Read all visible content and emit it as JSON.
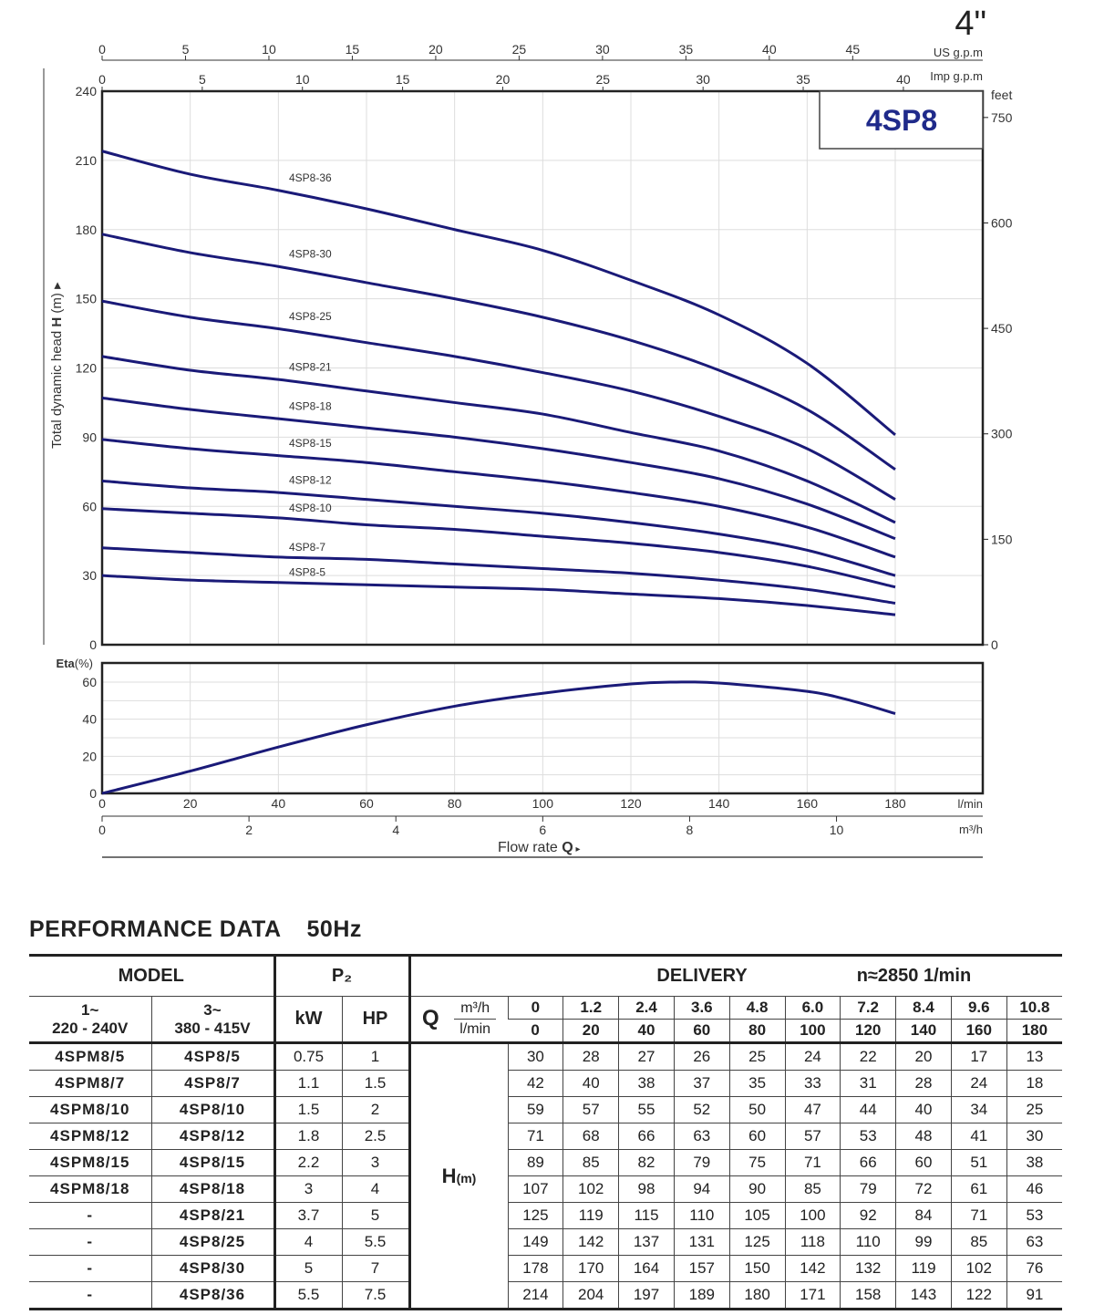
{
  "header": {
    "size_label": "4\"",
    "model_box": "4SP8",
    "us_gpm_label": "US g.p.m",
    "imp_gpm_label": "Imp g.p.m",
    "feet_label": "feet"
  },
  "colors": {
    "curve": "#1a1a78",
    "model_text": "#1f2a8a",
    "grid": "#dddddd",
    "axis": "#222222"
  },
  "chart_data": [
    {
      "type": "line",
      "title": "4SP8 head curves",
      "xlabel": "Flow rate Q",
      "ylabel": "Total dynamic head H (m)",
      "x_unit": "l/min",
      "x": [
        0,
        20,
        40,
        60,
        80,
        100,
        120,
        140,
        160,
        180
      ],
      "xlim": [
        0,
        200
      ],
      "ylim": [
        0,
        240
      ],
      "y_ticks": [
        0,
        30,
        60,
        90,
        120,
        150,
        180,
        210,
        240
      ],
      "x_ticks_lmin": [
        0,
        20,
        40,
        60,
        80,
        100,
        120,
        140,
        160,
        180
      ],
      "x_ticks_m3h": [
        0,
        2,
        4,
        6,
        8,
        10
      ],
      "x_ticks_us_gpm": [
        0,
        5,
        10,
        15,
        20,
        25,
        30,
        35,
        40,
        45
      ],
      "x_ticks_imp_gpm": [
        0,
        5,
        10,
        15,
        20,
        25,
        30,
        35,
        40
      ],
      "y2_ticks_feet": [
        0,
        150,
        300,
        450,
        600,
        750
      ],
      "grid": true,
      "series": [
        {
          "name": "4SP8-5",
          "values": [
            30,
            28,
            27,
            26,
            25,
            24,
            22,
            20,
            17,
            13
          ]
        },
        {
          "name": "4SP8-7",
          "values": [
            42,
            40,
            38,
            37,
            35,
            33,
            31,
            28,
            24,
            18
          ]
        },
        {
          "name": "4SP8-10",
          "values": [
            59,
            57,
            55,
            52,
            50,
            47,
            44,
            40,
            34,
            25
          ]
        },
        {
          "name": "4SP8-12",
          "values": [
            71,
            68,
            66,
            63,
            60,
            57,
            53,
            48,
            41,
            30
          ]
        },
        {
          "name": "4SP8-15",
          "values": [
            89,
            85,
            82,
            79,
            75,
            71,
            66,
            60,
            51,
            38
          ]
        },
        {
          "name": "4SP8-18",
          "values": [
            107,
            102,
            98,
            94,
            90,
            85,
            79,
            72,
            61,
            46
          ]
        },
        {
          "name": "4SP8-21",
          "values": [
            125,
            119,
            115,
            110,
            105,
            100,
            92,
            84,
            71,
            53
          ]
        },
        {
          "name": "4SP8-25",
          "values": [
            149,
            142,
            137,
            131,
            125,
            118,
            110,
            99,
            85,
            63
          ]
        },
        {
          "name": "4SP8-30",
          "values": [
            178,
            170,
            164,
            157,
            150,
            142,
            132,
            119,
            102,
            76
          ]
        },
        {
          "name": "4SP8-36",
          "values": [
            214,
            204,
            197,
            189,
            180,
            171,
            158,
            143,
            122,
            91
          ]
        }
      ]
    },
    {
      "type": "line",
      "title": "Efficiency",
      "ylabel": "Eta(%)",
      "xlabel": "Flow rate Q",
      "x_unit": "l/min",
      "x": [
        0,
        20,
        40,
        60,
        80,
        100,
        120,
        130,
        140,
        160,
        170,
        180
      ],
      "xlim": [
        0,
        200
      ],
      "ylim": [
        0,
        70
      ],
      "y_ticks": [
        0,
        20,
        40,
        60
      ],
      "grid": true,
      "series": [
        {
          "name": "Eta",
          "values": [
            0,
            12,
            25,
            37,
            47,
            54,
            59,
            60,
            59.5,
            55,
            50,
            43
          ]
        }
      ]
    }
  ],
  "axes": {
    "ylabel_main": "Total dynamic head",
    "ylabel_bold": "H",
    "ylabel_unit": "(m)",
    "eta_label_bold": "Eta",
    "eta_label_unit": "(%)",
    "lmin_unit": "l/min",
    "m3h_unit": "m³/h",
    "flow_label": "Flow  rate",
    "flow_symbol": "Q"
  },
  "performance": {
    "title": "PERFORMANCE  DATA",
    "frequency": "50Hz",
    "headers": {
      "model": "MODEL",
      "p2": "P₂",
      "delivery": "DELIVERY",
      "speed": "n≈2850 1/min",
      "single_phase": "1~",
      "single_voltage": "220 - 240V",
      "three_phase": "3~",
      "three_voltage": "380 - 415V",
      "kw": "kW",
      "hp": "HP",
      "q": "Q",
      "m3h": "m³/h",
      "lmin": "l/min",
      "h_label": "H",
      "h_unit": "(m)"
    },
    "flow_m3h": [
      "0",
      "1.2",
      "2.4",
      "3.6",
      "4.8",
      "6.0",
      "7.2",
      "8.4",
      "9.6",
      "10.8"
    ],
    "flow_lmin": [
      "0",
      "20",
      "40",
      "60",
      "80",
      "100",
      "120",
      "140",
      "160",
      "180"
    ],
    "rows": [
      {
        "m1": "4SPM8/5",
        "m3": "4SP8/5",
        "kw": "0.75",
        "hp": "1",
        "h": [
          "30",
          "28",
          "27",
          "26",
          "25",
          "24",
          "22",
          "20",
          "17",
          "13"
        ]
      },
      {
        "m1": "4SPM8/7",
        "m3": "4SP8/7",
        "kw": "1.1",
        "hp": "1.5",
        "h": [
          "42",
          "40",
          "38",
          "37",
          "35",
          "33",
          "31",
          "28",
          "24",
          "18"
        ]
      },
      {
        "m1": "4SPM8/10",
        "m3": "4SP8/10",
        "kw": "1.5",
        "hp": "2",
        "h": [
          "59",
          "57",
          "55",
          "52",
          "50",
          "47",
          "44",
          "40",
          "34",
          "25"
        ]
      },
      {
        "m1": "4SPM8/12",
        "m3": "4SP8/12",
        "kw": "1.8",
        "hp": "2.5",
        "h": [
          "71",
          "68",
          "66",
          "63",
          "60",
          "57",
          "53",
          "48",
          "41",
          "30"
        ]
      },
      {
        "m1": "4SPM8/15",
        "m3": "4SP8/15",
        "kw": "2.2",
        "hp": "3",
        "h": [
          "89",
          "85",
          "82",
          "79",
          "75",
          "71",
          "66",
          "60",
          "51",
          "38"
        ]
      },
      {
        "m1": "4SPM8/18",
        "m3": "4SP8/18",
        "kw": "3",
        "hp": "4",
        "h": [
          "107",
          "102",
          "98",
          "94",
          "90",
          "85",
          "79",
          "72",
          "61",
          "46"
        ]
      },
      {
        "m1": "-",
        "m3": "4SP8/21",
        "kw": "3.7",
        "hp": "5",
        "h": [
          "125",
          "119",
          "115",
          "110",
          "105",
          "100",
          "92",
          "84",
          "71",
          "53"
        ]
      },
      {
        "m1": "-",
        "m3": "4SP8/25",
        "kw": "4",
        "hp": "5.5",
        "h": [
          "149",
          "142",
          "137",
          "131",
          "125",
          "118",
          "110",
          "99",
          "85",
          "63"
        ]
      },
      {
        "m1": "-",
        "m3": "4SP8/30",
        "kw": "5",
        "hp": "7",
        "h": [
          "178",
          "170",
          "164",
          "157",
          "150",
          "142",
          "132",
          "119",
          "102",
          "76"
        ]
      },
      {
        "m1": "-",
        "m3": "4SP8/36",
        "kw": "5.5",
        "hp": "7.5",
        "h": [
          "214",
          "204",
          "197",
          "189",
          "180",
          "171",
          "158",
          "143",
          "122",
          "91"
        ]
      }
    ]
  }
}
